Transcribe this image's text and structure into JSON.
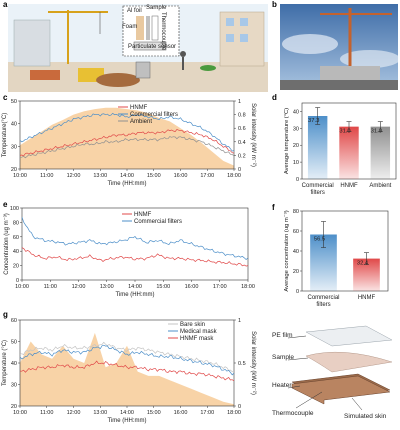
{
  "panels": {
    "a": {
      "letter": "a",
      "labels": {
        "al_foil": "Al foil",
        "sample": "Sample",
        "foam": "Foam",
        "thermocouple": "Thermocouple",
        "particulate_sensor": "Particulate sensor"
      }
    },
    "b": {
      "letter": "b"
    },
    "c": {
      "letter": "c"
    },
    "d": {
      "letter": "d"
    },
    "e": {
      "letter": "e"
    },
    "f": {
      "letter": "f"
    },
    "g": {
      "letter": "g"
    },
    "h": {
      "labels": {
        "pe_film": "PE film",
        "sample": "Sample",
        "heater": "Heater",
        "thermocouple": "Thermocouple",
        "simulated_skin": "Simulated skin"
      }
    }
  },
  "colors": {
    "hnmf": "#e04848",
    "commercial": "#4d8fc9",
    "ambient": "#909090",
    "solar": "#f6c48a",
    "bare_skin": "#c4c4c4"
  },
  "chart_data": [
    {
      "id": "c",
      "type": "line",
      "xlabel": "Time (HH:mm)",
      "ylabel": "Temperature(°C)",
      "y2label": "Solar intensity (kW m⁻²)",
      "x_ticks": [
        "10:00",
        "11:00",
        "12:00",
        "13:00",
        "14:00",
        "15:00",
        "16:00",
        "17:00",
        "18:00"
      ],
      "ylim": [
        20,
        50
      ],
      "y_ticks": [
        20,
        30,
        40,
        50
      ],
      "y2lim": [
        0,
        1.0
      ],
      "y2_ticks": [
        0,
        0.2,
        0.4,
        0.6,
        0.8,
        1.0
      ],
      "legend": "top-center",
      "series": [
        {
          "name": "HNMF",
          "values": [
            26,
            27,
            28,
            29,
            30,
            31,
            32,
            33,
            34,
            35,
            35,
            36,
            36,
            36,
            37,
            37,
            36,
            35,
            33,
            30,
            27
          ]
        },
        {
          "name": "Commercial filters",
          "values": [
            32,
            34,
            36,
            38,
            40,
            42,
            43,
            44,
            44,
            44,
            43,
            44,
            43,
            42,
            43,
            42,
            40,
            38,
            35,
            31,
            28
          ]
        },
        {
          "name": "Ambient",
          "values": [
            25,
            26,
            27,
            28,
            29,
            30,
            31,
            31,
            32,
            32,
            33,
            33,
            33,
            33,
            34,
            34,
            33,
            32,
            30,
            28,
            26
          ]
        }
      ],
      "solar": {
        "values": [
          0.35,
          0.45,
          0.55,
          0.65,
          0.72,
          0.8,
          0.85,
          0.88,
          0.9,
          0.9,
          0.88,
          0.86,
          0.82,
          0.75,
          0.7,
          0.6,
          0.5,
          0.38,
          0.25,
          0.12,
          0.05
        ]
      }
    },
    {
      "id": "d",
      "type": "bar",
      "ylabel": "Average temperature (°C)",
      "ylim": [
        0,
        45
      ],
      "y_ticks": [
        0,
        10,
        20,
        30,
        40
      ],
      "categories": [
        "Commercial filters",
        "HNMF",
        "Ambient"
      ],
      "values": [
        37.3,
        31.0,
        31.0
      ],
      "errors": [
        5,
        3,
        3
      ]
    },
    {
      "id": "e",
      "type": "line",
      "xlabel": "Time (HH:mm)",
      "ylabel": "Concentration (ug m⁻³)",
      "x_ticks": [
        "10:00",
        "11:00",
        "12:00",
        "13:00",
        "14:00",
        "15:00",
        "16:00",
        "17:00",
        "18:00"
      ],
      "ylim": [
        0,
        100
      ],
      "y_ticks": [
        0,
        20,
        40,
        60,
        80,
        100
      ],
      "legend": "top-center",
      "series": [
        {
          "name": "HNMF",
          "values": [
            45,
            35,
            30,
            32,
            28,
            30,
            33,
            27,
            30,
            32,
            29,
            30,
            35,
            30,
            30,
            28,
            27,
            25,
            24,
            22,
            20
          ]
        },
        {
          "name": "Commercial filters",
          "values": [
            85,
            60,
            55,
            53,
            50,
            52,
            55,
            50,
            52,
            55,
            60,
            52,
            55,
            50,
            55,
            50,
            45,
            40,
            36,
            33,
            30
          ]
        }
      ]
    },
    {
      "id": "f",
      "type": "bar",
      "ylabel": "Average concentration (ug m⁻³)",
      "ylim": [
        0,
        80
      ],
      "y_ticks": [
        0,
        20,
        40,
        60,
        80
      ],
      "categories": [
        "Commercial filters",
        "HNMF"
      ],
      "values": [
        56.5,
        32.4
      ],
      "errors": [
        13,
        6
      ]
    },
    {
      "id": "g",
      "type": "line",
      "xlabel": "Time (HH:mm)",
      "ylabel": "Temperature (°C)",
      "y2label": "Solar intensity (kW m⁻²)",
      "x_ticks": [
        "10:00",
        "11:00",
        "12:00",
        "13:00",
        "14:00",
        "15:00",
        "16:00",
        "17:00",
        "18:00"
      ],
      "ylim": [
        20,
        60
      ],
      "y_ticks": [
        20,
        30,
        40,
        50,
        60
      ],
      "y2lim": [
        0,
        1.0
      ],
      "y2_ticks": [
        0,
        0.5,
        1.0
      ],
      "legend": "top-right",
      "series": [
        {
          "name": "Bare skin",
          "values": [
            44,
            46,
            47,
            46,
            48,
            47,
            47,
            48,
            49,
            47,
            46,
            47,
            46,
            45,
            44,
            43,
            42,
            41,
            40,
            38,
            36
          ]
        },
        {
          "name": "Medical mask",
          "values": [
            42,
            44,
            45,
            44,
            46,
            45,
            45,
            47,
            48,
            46,
            44,
            45,
            44,
            43,
            43,
            42,
            41,
            40,
            39,
            37,
            35
          ]
        },
        {
          "name": "HNMF mask",
          "values": [
            36,
            37,
            38,
            38,
            39,
            38,
            38,
            40,
            40,
            39,
            38,
            38,
            37,
            37,
            36,
            36,
            35,
            35,
            34,
            33,
            32
          ]
        }
      ],
      "solar": {
        "values": [
          0.5,
          0.75,
          0.6,
          0.55,
          0.7,
          0.55,
          0.5,
          0.85,
          0.45,
          0.5,
          0.7,
          0.4,
          0.35,
          0.35,
          0.3,
          0.25,
          0.2,
          0.15,
          0.1,
          0.05,
          0.02
        ]
      }
    }
  ]
}
